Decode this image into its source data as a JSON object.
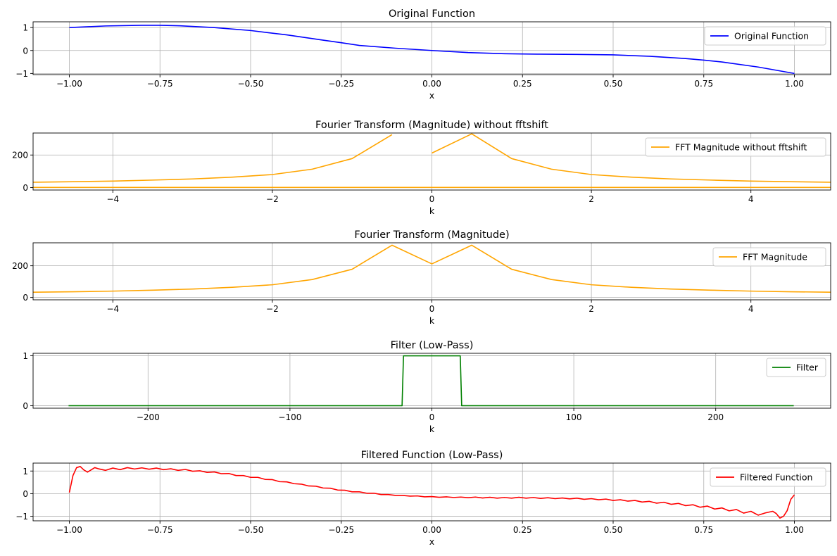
{
  "chart_data": [
    {
      "type": "line",
      "title": "Original Function",
      "xlabel": "x",
      "ylabel": "",
      "xlim": [
        -1.1,
        1.1
      ],
      "ylim": [
        -1.05,
        1.25
      ],
      "xticks": [
        -1.0,
        -0.75,
        -0.5,
        -0.25,
        0.0,
        0.25,
        0.5,
        0.75,
        1.0
      ],
      "xtick_labels": [
        "−1.00",
        "−0.75",
        "−0.50",
        "−0.25",
        "0.00",
        "0.25",
        "0.50",
        "0.75",
        "1.00"
      ],
      "yticks": [
        1,
        0,
        -1
      ],
      "ytick_labels": [
        "1",
        "0",
        "−1"
      ],
      "grid": true,
      "legend_loc": "upper right",
      "series": [
        {
          "name": "Original Function",
          "color": "#0000ff",
          "x": [
            -1.0,
            -0.9,
            -0.8,
            -0.75,
            -0.7,
            -0.6,
            -0.5,
            -0.4,
            -0.3,
            -0.25,
            -0.2,
            -0.1,
            0.0,
            0.1,
            0.2,
            0.25,
            0.3,
            0.4,
            0.5,
            0.6,
            0.7,
            0.75,
            0.8,
            0.9,
            1.0
          ],
          "y": [
            1.0,
            1.07,
            1.1,
            1.1,
            1.08,
            1.0,
            0.87,
            0.68,
            0.45,
            0.34,
            0.22,
            0.1,
            0.0,
            -0.09,
            -0.14,
            -0.15,
            -0.16,
            -0.17,
            -0.19,
            -0.25,
            -0.35,
            -0.42,
            -0.5,
            -0.72,
            -1.0
          ]
        }
      ]
    },
    {
      "type": "line",
      "title": "Fourier Transform (Magnitude) without fftshift",
      "xlabel": "k",
      "ylabel": "",
      "xlim": [
        -5,
        5
      ],
      "ylim": [
        -15,
        335
      ],
      "xticks": [
        -4,
        -2,
        0,
        2,
        4
      ],
      "xtick_labels": [
        "−4",
        "−2",
        "0",
        "2",
        "4"
      ],
      "yticks": [
        0,
        200
      ],
      "ytick_labels": [
        "0",
        "200"
      ],
      "grid": true,
      "legend_loc": "upper right",
      "series": [
        {
          "name": "FFT Magnitude without fftshift",
          "color": "#ffa500",
          "x": [
            -5,
            -4.5,
            -4,
            -3.5,
            -3,
            -2.5,
            -2,
            -1.5,
            -1,
            -0.5
          ],
          "y": [
            33,
            36,
            40,
            46,
            53,
            64,
            80,
            113,
            178,
            325
          ]
        },
        {
          "name": "",
          "color": "#ffa500",
          "x": [
            0,
            0.5,
            1,
            1.5,
            2,
            2.5,
            3,
            3.5,
            4,
            4.5,
            5
          ],
          "y": [
            212,
            330,
            178,
            113,
            80,
            64,
            53,
            46,
            40,
            36,
            33
          ]
        },
        {
          "name": "",
          "color": "#ffa500",
          "x": [
            -5,
            5
          ],
          "y": [
            1,
            1
          ]
        }
      ]
    },
    {
      "type": "line",
      "title": "Fourier Transform (Magnitude)",
      "xlabel": "k",
      "ylabel": "",
      "xlim": [
        -5,
        5
      ],
      "ylim": [
        -15,
        345
      ],
      "xticks": [
        -4,
        -2,
        0,
        2,
        4
      ],
      "xtick_labels": [
        "−4",
        "−2",
        "0",
        "2",
        "4"
      ],
      "yticks": [
        0,
        200
      ],
      "ytick_labels": [
        "0",
        "200"
      ],
      "grid": true,
      "legend_loc": "upper right",
      "series": [
        {
          "name": "FFT Magnitude",
          "color": "#ffa500",
          "x": [
            -5,
            -4.5,
            -4,
            -3.5,
            -3,
            -2.5,
            -2,
            -1.5,
            -1,
            -0.5,
            0,
            0.5,
            1,
            1.5,
            2,
            2.5,
            3,
            3.5,
            4,
            4.5,
            5
          ],
          "y": [
            33,
            36,
            40,
            46,
            53,
            64,
            80,
            113,
            178,
            330,
            212,
            330,
            178,
            113,
            80,
            64,
            53,
            46,
            40,
            36,
            33
          ]
        }
      ]
    },
    {
      "type": "line",
      "title": "Filter (Low-Pass)",
      "xlabel": "k",
      "ylabel": "",
      "xlim": [
        -281,
        281
      ],
      "ylim": [
        -0.05,
        1.05
      ],
      "xticks": [
        -200,
        -100,
        0,
        100,
        200
      ],
      "xtick_labels": [
        "−200",
        "−100",
        "0",
        "100",
        "200"
      ],
      "yticks": [
        1,
        0
      ],
      "ytick_labels": [
        "1",
        "0"
      ],
      "grid": true,
      "legend_loc": "upper right",
      "series": [
        {
          "name": "Filter",
          "color": "#008000",
          "x": [
            -256,
            -21,
            -20,
            20,
            21,
            255
          ],
          "y": [
            0,
            0,
            1,
            1,
            0,
            0
          ]
        }
      ]
    },
    {
      "type": "line",
      "title": "Filtered Function (Low-Pass)",
      "xlabel": "x",
      "ylabel": "",
      "xlim": [
        -1.1,
        1.1
      ],
      "ylim": [
        -1.2,
        1.35
      ],
      "xticks": [
        -1.0,
        -0.75,
        -0.5,
        -0.25,
        0.0,
        0.25,
        0.5,
        0.75,
        1.0
      ],
      "xtick_labels": [
        "−1.00",
        "−0.75",
        "−0.50",
        "−0.25",
        "0.00",
        "0.25",
        "0.50",
        "0.75",
        "1.00"
      ],
      "yticks": [
        1,
        0,
        -1
      ],
      "ytick_labels": [
        "1",
        "0",
        "−1"
      ],
      "grid": true,
      "legend_loc": "upper right",
      "series": [
        {
          "name": "Filtered Function",
          "color": "#ff0000",
          "x": [
            -1.0,
            -0.99,
            -0.98,
            -0.97,
            -0.96,
            -0.95,
            -0.94,
            -0.93,
            -0.92,
            -0.9,
            -0.88,
            -0.86,
            -0.84,
            -0.82,
            -0.8,
            -0.78,
            -0.76,
            -0.74,
            -0.72,
            -0.7,
            -0.68,
            -0.66,
            -0.64,
            -0.62,
            -0.6,
            -0.58,
            -0.56,
            -0.54,
            -0.52,
            -0.5,
            -0.48,
            -0.46,
            -0.44,
            -0.42,
            -0.4,
            -0.38,
            -0.36,
            -0.34,
            -0.32,
            -0.3,
            -0.28,
            -0.26,
            -0.24,
            -0.22,
            -0.2,
            -0.18,
            -0.16,
            -0.14,
            -0.12,
            -0.1,
            -0.08,
            -0.06,
            -0.04,
            -0.02,
            0.0,
            0.02,
            0.04,
            0.06,
            0.08,
            0.1,
            0.12,
            0.14,
            0.16,
            0.18,
            0.2,
            0.22,
            0.24,
            0.26,
            0.28,
            0.3,
            0.32,
            0.34,
            0.36,
            0.38,
            0.4,
            0.42,
            0.44,
            0.46,
            0.48,
            0.5,
            0.52,
            0.54,
            0.56,
            0.58,
            0.6,
            0.62,
            0.64,
            0.66,
            0.68,
            0.7,
            0.72,
            0.74,
            0.76,
            0.78,
            0.8,
            0.82,
            0.84,
            0.86,
            0.88,
            0.9,
            0.92,
            0.94,
            0.95,
            0.96,
            0.97,
            0.98,
            0.99,
            1.0
          ],
          "y": [
            0.05,
            0.8,
            1.15,
            1.2,
            1.05,
            0.95,
            1.05,
            1.15,
            1.1,
            1.03,
            1.13,
            1.06,
            1.15,
            1.09,
            1.14,
            1.08,
            1.13,
            1.06,
            1.1,
            1.03,
            1.07,
            0.99,
            1.01,
            0.94,
            0.96,
            0.88,
            0.89,
            0.8,
            0.8,
            0.72,
            0.72,
            0.63,
            0.62,
            0.53,
            0.52,
            0.44,
            0.42,
            0.34,
            0.33,
            0.25,
            0.24,
            0.16,
            0.15,
            0.08,
            0.08,
            0.02,
            0.02,
            -0.04,
            -0.04,
            -0.08,
            -0.08,
            -0.11,
            -0.1,
            -0.14,
            -0.13,
            -0.16,
            -0.14,
            -0.17,
            -0.15,
            -0.18,
            -0.15,
            -0.19,
            -0.16,
            -0.2,
            -0.17,
            -0.2,
            -0.16,
            -0.2,
            -0.17,
            -0.21,
            -0.18,
            -0.22,
            -0.19,
            -0.23,
            -0.2,
            -0.25,
            -0.22,
            -0.27,
            -0.24,
            -0.3,
            -0.27,
            -0.33,
            -0.3,
            -0.37,
            -0.34,
            -0.42,
            -0.38,
            -0.47,
            -0.43,
            -0.53,
            -0.49,
            -0.6,
            -0.55,
            -0.68,
            -0.63,
            -0.76,
            -0.7,
            -0.86,
            -0.78,
            -0.95,
            -0.85,
            -0.78,
            -0.88,
            -1.08,
            -1.0,
            -0.75,
            -0.25,
            -0.05
          ]
        }
      ]
    }
  ]
}
